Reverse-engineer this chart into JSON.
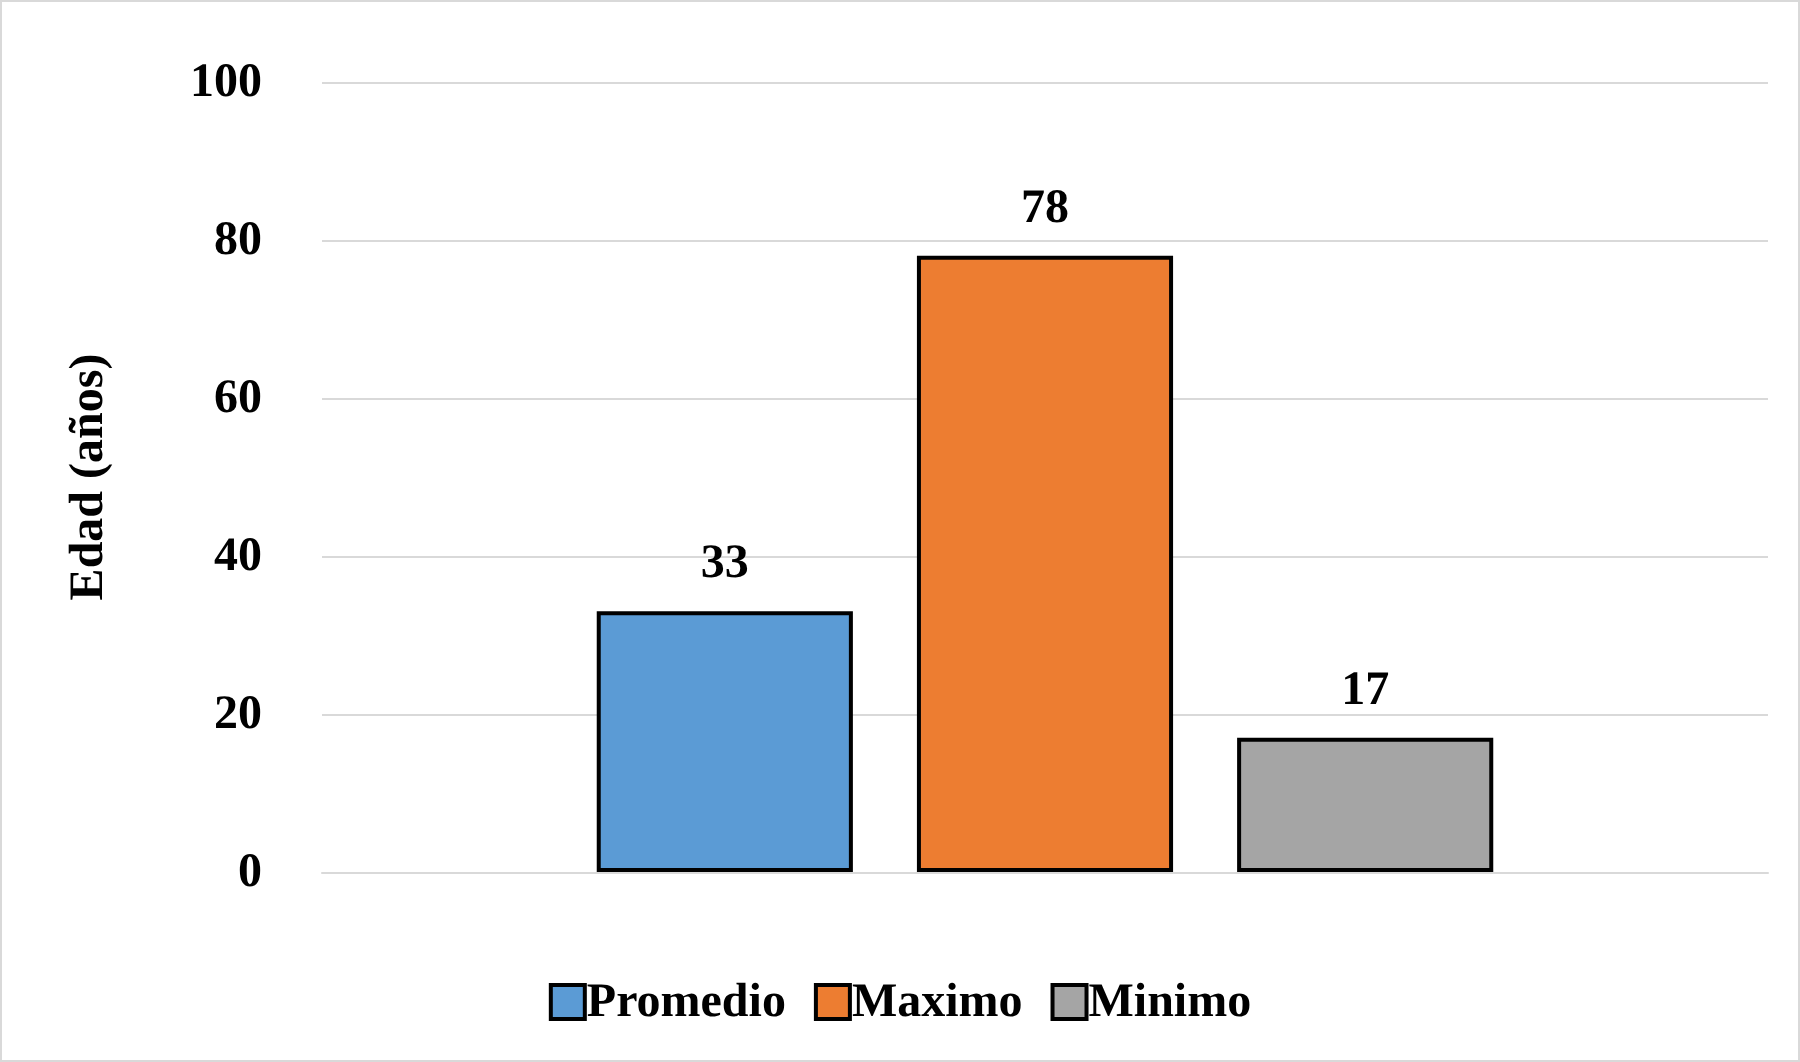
{
  "chart_data": {
    "type": "bar",
    "ylabel": "Edad (años)",
    "categories": [
      null
    ],
    "series": [
      {
        "name": "Promedio",
        "color": "#5b9bd5",
        "values": [
          33
        ]
      },
      {
        "name": "Maximo",
        "color": "#ed7d31",
        "values": [
          78
        ]
      },
      {
        "name": "Minimo",
        "color": "#a5a5a5",
        "values": [
          17
        ]
      }
    ],
    "ylim": [
      0,
      100
    ],
    "yticks": [
      0,
      20,
      40,
      60,
      80,
      100
    ],
    "grid": "y",
    "legend": "bottom",
    "data_labels": true
  }
}
